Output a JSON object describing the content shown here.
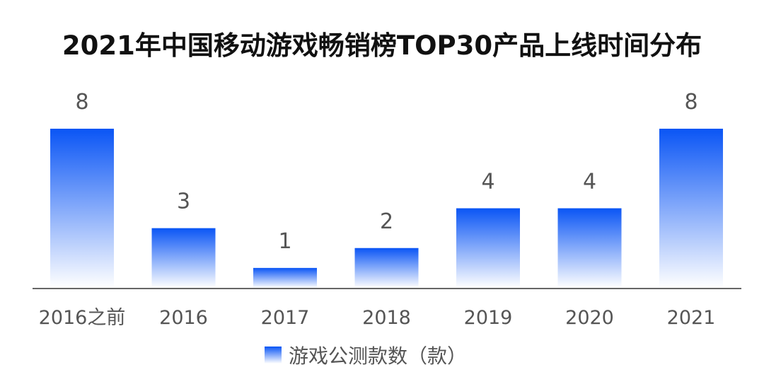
{
  "chart_data": {
    "type": "bar",
    "title": "2021年中国移动游戏畅销榜TOP30产品上线时间分布",
    "categories": [
      "2016之前",
      "2016",
      "2017",
      "2018",
      "2019",
      "2020",
      "2021"
    ],
    "series": [
      {
        "name": "游戏公测款数（款）",
        "values": [
          8,
          3,
          1,
          2,
          4,
          4,
          8
        ]
      }
    ],
    "xlabel": "",
    "ylabel": "",
    "ylim": [
      0,
      8
    ],
    "grid": false,
    "legend_position": "bottom",
    "colors": {
      "bar_top": "#0a55f5",
      "bar_bottom": "#ffffff",
      "axis": "#666666",
      "text": "#555555"
    }
  }
}
